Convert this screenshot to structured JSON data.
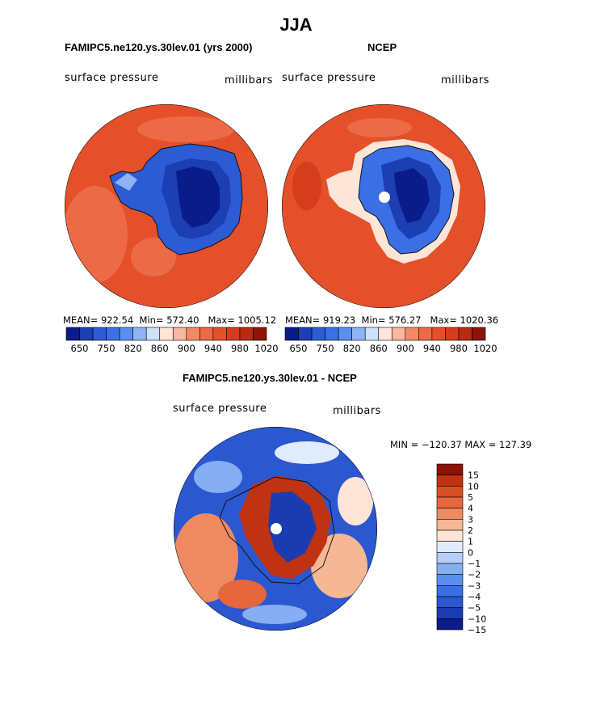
{
  "main_title": "JJA",
  "palettes": {
    "absolute": [
      "#0a1b8a",
      "#1c3fb3",
      "#2d5bd4",
      "#3b6fe6",
      "#5a8ef0",
      "#8fb3f5",
      "#cfe0fb",
      "#fde5d8",
      "#f8b89c",
      "#f28a68",
      "#ec6a46",
      "#e4502a",
      "#d63d1c",
      "#b82a12",
      "#8a1508"
    ],
    "difference": [
      "#0a1b8a",
      "#1b3cb0",
      "#2b57d0",
      "#3a6ee6",
      "#5c8eef",
      "#86aef4",
      "#b6cff9",
      "#e0ecfd",
      "#fde4d6",
      "#f6b795",
      "#ee8a62",
      "#e6673c",
      "#d94f23",
      "#bf3313",
      "#8a1206"
    ],
    "land_color": "#1b3cb0",
    "ocean_color": "#e4502a",
    "interior_color": "#0a1b8a"
  },
  "panels": [
    {
      "title": "FAMIPC5.ne120.ys.30lev.01 (yrs 2000)",
      "left_label": "surface pressure",
      "right_label": "millibars",
      "mean_label": "MEAN=",
      "mean": "922.54",
      "min_label": "Min=",
      "min": "572.40",
      "max_label": "Max=",
      "max": "1005.12",
      "colorbar_ticks": [
        "650",
        "750",
        "820",
        "860",
        "900",
        "940",
        "980",
        "1020"
      ]
    },
    {
      "title": "NCEP",
      "left_label": "surface pressure",
      "right_label": "millibars",
      "mean_label": "MEAN=",
      "mean": "919.23",
      "min_label": "Min=",
      "min": "576.27",
      "max_label": "Max=",
      "max": "1020.36",
      "colorbar_ticks": [
        "650",
        "750",
        "820",
        "860",
        "900",
        "940",
        "980",
        "1020"
      ]
    },
    {
      "title": "FAMIPC5.ne120.ys.30lev.01 - NCEP",
      "left_label": "surface pressure",
      "right_label": "millibars",
      "minmax_text": "MIN = −120.37 MAX = 127.39",
      "colorbar_ticks": [
        "15",
        "10",
        "5",
        "4",
        "3",
        "2",
        "1",
        "0",
        "−1",
        "−2",
        "−3",
        "−4",
        "−5",
        "−10",
        "−15"
      ]
    }
  ]
}
